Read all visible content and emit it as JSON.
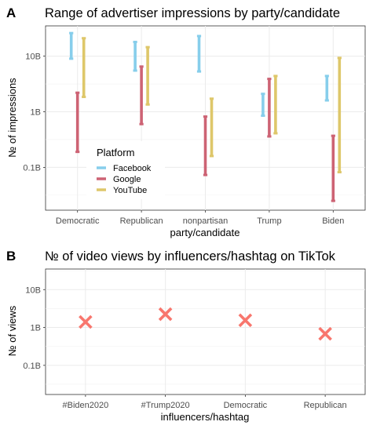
{
  "chart_data": [
    {
      "panel_label": "A",
      "type": "range",
      "title": "Range of advertiser impressions by party/candidate",
      "xlabel": "party/candidate",
      "ylabel": "№ of impressions",
      "y_scale": "log10",
      "ylim": [
        0.017,
        35
      ],
      "y_unit": "billion",
      "y_ticks": [
        {
          "value": 0.1,
          "label": "0.1B"
        },
        {
          "value": 1,
          "label": "1B"
        },
        {
          "value": 10,
          "label": "10B"
        }
      ],
      "categories": [
        "Democratic",
        "Republican",
        "nonpartisan",
        "Trump",
        "Biden"
      ],
      "legend": {
        "title": "Platform",
        "position": "inside-left"
      },
      "series": [
        {
          "name": "Facebook",
          "color": "#87ceeb",
          "ranges": [
            [
              9,
              26
            ],
            [
              5.5,
              18
            ],
            [
              5.3,
              23
            ],
            [
              0.85,
              2.1
            ],
            [
              1.6,
              4.4
            ]
          ]
        },
        {
          "name": "Google",
          "color": "#cd6374",
          "ranges": [
            [
              0.19,
              2.2
            ],
            [
              0.6,
              6.5
            ],
            [
              0.073,
              0.82
            ],
            [
              0.36,
              3.9
            ],
            [
              0.025,
              0.37
            ]
          ]
        },
        {
          "name": "YouTube",
          "color": "#dec76a",
          "ranges": [
            [
              1.85,
              21
            ],
            [
              1.35,
              14.5
            ],
            [
              0.16,
              1.72
            ],
            [
              0.41,
              4.4
            ],
            [
              0.082,
              9.3
            ]
          ]
        }
      ],
      "grid": true
    },
    {
      "panel_label": "B",
      "type": "scatter",
      "title": "№ of video views by influencers/hashtag on TikTok",
      "xlabel": "influencers/hashtag",
      "ylabel": "№ of views",
      "y_scale": "log10",
      "ylim": [
        0.017,
        35
      ],
      "y_unit": "billion",
      "y_ticks": [
        {
          "value": 0.1,
          "label": "0.1B"
        },
        {
          "value": 1,
          "label": "1B"
        },
        {
          "value": 10,
          "label": "10B"
        }
      ],
      "categories": [
        "#Biden2020",
        "#Trump2020",
        "Democratic",
        "Republican"
      ],
      "values": [
        1.4,
        2.25,
        1.55,
        0.68
      ],
      "marker": "x",
      "color": "#f8766d",
      "grid": true
    }
  ]
}
